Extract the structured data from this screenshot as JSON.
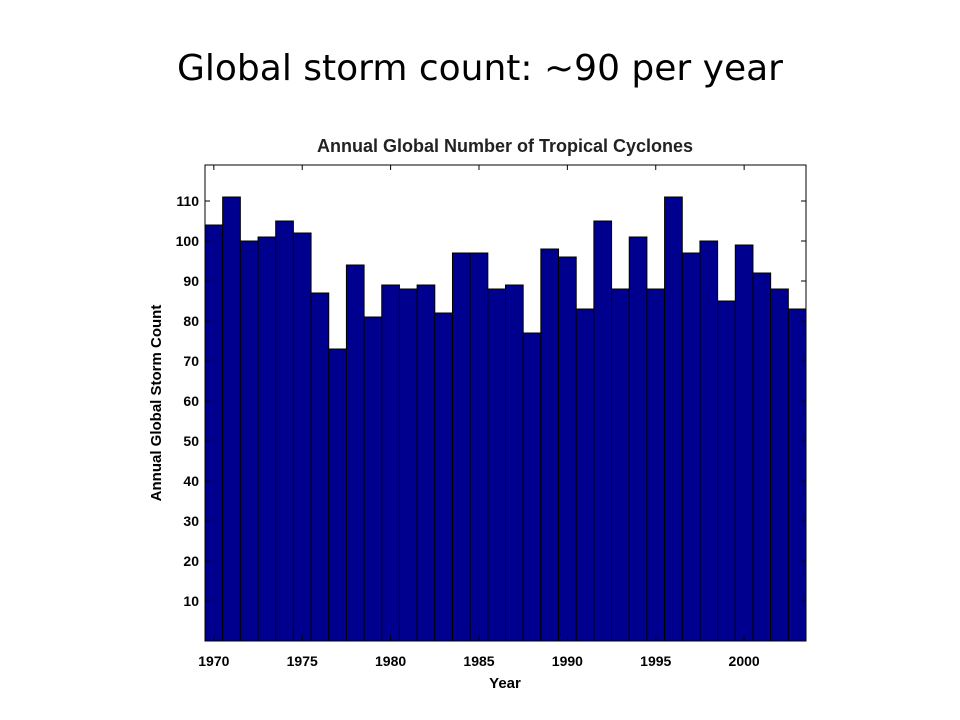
{
  "slide": {
    "title": "Global storm count: ~90 per year"
  },
  "chart_data": {
    "type": "bar",
    "title": "Annual Global Number of Tropical Cyclones",
    "xlabel": "Year",
    "ylabel": "Annual Global Storm Count",
    "x": [
      1970,
      1971,
      1972,
      1973,
      1974,
      1975,
      1976,
      1977,
      1978,
      1979,
      1980,
      1981,
      1982,
      1983,
      1984,
      1985,
      1986,
      1987,
      1988,
      1989,
      1990,
      1991,
      1992,
      1993,
      1994,
      1995,
      1996,
      1997,
      1998,
      1999,
      2000,
      2001,
      2002,
      2003
    ],
    "values": [
      104,
      111,
      100,
      101,
      105,
      102,
      87,
      73,
      94,
      81,
      89,
      88,
      89,
      82,
      97,
      97,
      88,
      89,
      77,
      98,
      96,
      83,
      105,
      88,
      101,
      88,
      111,
      97,
      100,
      85,
      99,
      92,
      88,
      83
    ],
    "xlim": [
      1969.5,
      2003.5
    ],
    "ylim": [
      0,
      119
    ],
    "xticks": [
      1970,
      1975,
      1980,
      1985,
      1990,
      1995,
      2000
    ],
    "yticks": [
      10,
      20,
      30,
      40,
      50,
      60,
      70,
      80,
      90,
      100,
      110
    ],
    "bar_color": "#00008f",
    "edge_color": "#000000",
    "grid": false,
    "legend": "none"
  }
}
